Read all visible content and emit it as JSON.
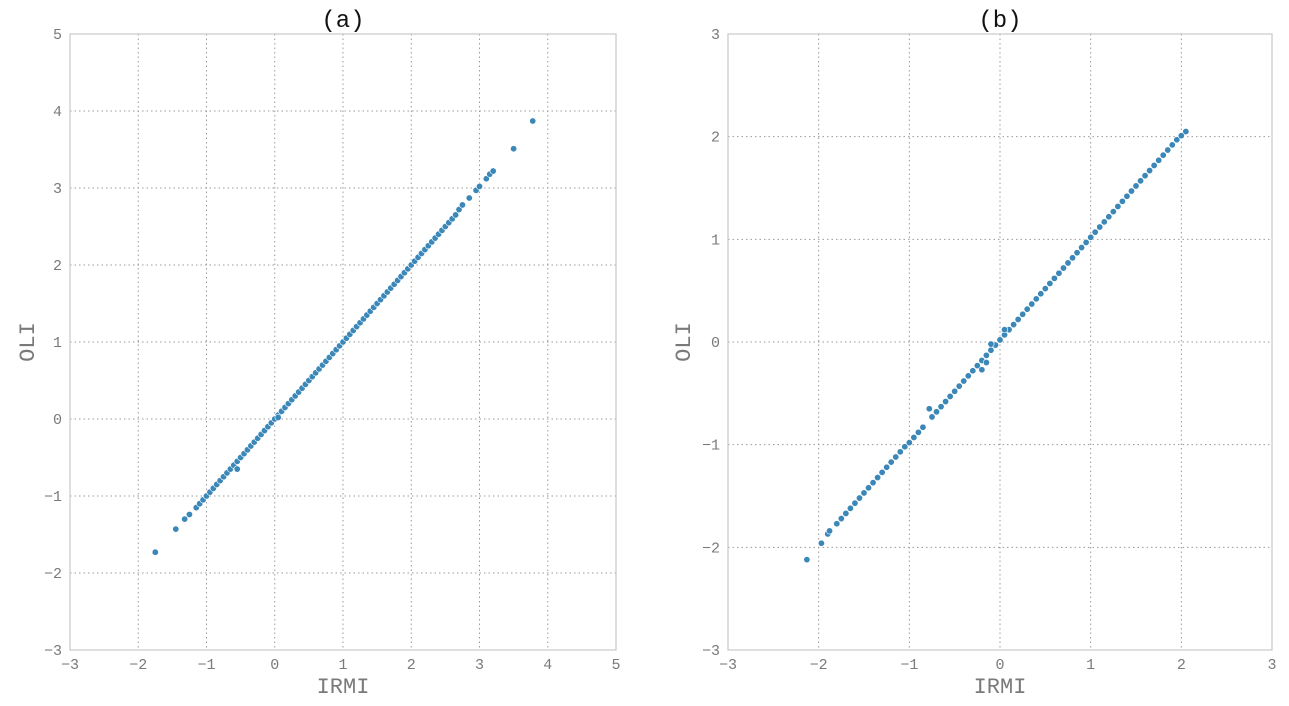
{
  "chart_data": [
    {
      "type": "scatter",
      "title": "(a)",
      "xlabel": "IRMI",
      "ylabel": "OLI",
      "xlim": [
        -3,
        5
      ],
      "ylim": [
        -3,
        5
      ],
      "xticks": [
        -3,
        -2,
        -1,
        0,
        1,
        2,
        3,
        4,
        5
      ],
      "yticks": [
        -3,
        -2,
        -1,
        0,
        1,
        2,
        3,
        4,
        5
      ],
      "grid": true,
      "color": "#3a87b8",
      "x": [
        -1.75,
        -1.45,
        -1.32,
        -1.25,
        -1.15,
        -1.1,
        -1.05,
        -1.0,
        -0.95,
        -0.9,
        -0.85,
        -0.8,
        -0.75,
        -0.7,
        -0.65,
        -0.6,
        -0.55,
        -0.5,
        -0.45,
        -0.4,
        -0.35,
        -0.3,
        -0.25,
        -0.2,
        -0.15,
        -0.1,
        -0.05,
        0.0,
        0.05,
        0.1,
        0.15,
        0.2,
        0.25,
        0.3,
        0.35,
        0.4,
        0.45,
        0.5,
        0.55,
        0.6,
        0.65,
        0.7,
        0.75,
        0.8,
        0.85,
        0.9,
        0.95,
        1.0,
        1.05,
        1.1,
        1.15,
        1.2,
        1.25,
        1.3,
        1.35,
        1.4,
        1.45,
        1.5,
        1.55,
        1.6,
        1.65,
        1.7,
        1.75,
        1.8,
        1.85,
        1.9,
        1.95,
        2.0,
        2.05,
        2.1,
        2.15,
        2.2,
        2.25,
        2.3,
        2.35,
        2.4,
        2.45,
        2.5,
        2.55,
        2.6,
        2.65,
        2.7,
        2.75,
        2.85,
        2.95,
        3.0,
        3.1,
        3.15,
        3.2,
        3.5,
        3.78,
        -0.55,
        0.05
      ],
      "y": [
        -1.73,
        -1.43,
        -1.3,
        -1.24,
        -1.15,
        -1.1,
        -1.05,
        -1.0,
        -0.95,
        -0.9,
        -0.85,
        -0.8,
        -0.75,
        -0.7,
        -0.65,
        -0.6,
        -0.55,
        -0.5,
        -0.45,
        -0.4,
        -0.35,
        -0.3,
        -0.25,
        -0.2,
        -0.15,
        -0.1,
        -0.05,
        0.0,
        0.05,
        0.1,
        0.15,
        0.2,
        0.25,
        0.3,
        0.35,
        0.4,
        0.45,
        0.5,
        0.55,
        0.6,
        0.65,
        0.7,
        0.75,
        0.8,
        0.85,
        0.9,
        0.95,
        1.0,
        1.05,
        1.1,
        1.15,
        1.2,
        1.25,
        1.3,
        1.35,
        1.4,
        1.45,
        1.5,
        1.55,
        1.6,
        1.65,
        1.7,
        1.75,
        1.8,
        1.85,
        1.9,
        1.95,
        2.0,
        2.05,
        2.1,
        2.15,
        2.2,
        2.25,
        2.3,
        2.35,
        2.4,
        2.45,
        2.5,
        2.55,
        2.6,
        2.65,
        2.72,
        2.78,
        2.87,
        2.97,
        3.02,
        3.12,
        3.18,
        3.22,
        3.51,
        3.87,
        -0.65,
        0.02
      ]
    },
    {
      "type": "scatter",
      "title": "(b)",
      "xlabel": "IRMI",
      "ylabel": "OLI",
      "xlim": [
        -3,
        3
      ],
      "ylim": [
        -3,
        3
      ],
      "xticks": [
        -3,
        -2,
        -1,
        0,
        1,
        2,
        3
      ],
      "yticks": [
        -3,
        -2,
        -1,
        0,
        1,
        2,
        3
      ],
      "grid": true,
      "color": "#3a87b8",
      "x": [
        -2.13,
        -1.97,
        -1.9,
        -1.88,
        -1.8,
        -1.75,
        -1.7,
        -1.65,
        -1.6,
        -1.55,
        -1.5,
        -1.45,
        -1.4,
        -1.35,
        -1.3,
        -1.25,
        -1.2,
        -1.15,
        -1.1,
        -1.05,
        -1.0,
        -0.95,
        -0.9,
        -0.85,
        -0.78,
        -0.75,
        -0.7,
        -0.65,
        -0.6,
        -0.55,
        -0.5,
        -0.45,
        -0.4,
        -0.35,
        -0.3,
        -0.25,
        -0.2,
        -0.15,
        -0.1,
        -0.05,
        0.0,
        0.05,
        0.1,
        0.15,
        0.2,
        0.25,
        0.3,
        0.35,
        0.4,
        0.45,
        0.5,
        0.55,
        0.6,
        0.65,
        0.7,
        0.75,
        0.8,
        0.85,
        0.9,
        0.95,
        1.0,
        1.05,
        1.1,
        1.15,
        1.2,
        1.25,
        1.3,
        1.35,
        1.4,
        1.45,
        1.5,
        1.55,
        1.6,
        1.65,
        1.7,
        1.75,
        1.8,
        1.85,
        1.9,
        1.95,
        2.0,
        2.05,
        -0.2,
        -0.1,
        0.05,
        -0.15
      ],
      "y": [
        -2.12,
        -1.96,
        -1.87,
        -1.84,
        -1.77,
        -1.72,
        -1.67,
        -1.62,
        -1.57,
        -1.52,
        -1.47,
        -1.42,
        -1.37,
        -1.32,
        -1.27,
        -1.22,
        -1.17,
        -1.12,
        -1.07,
        -1.02,
        -0.98,
        -0.93,
        -0.88,
        -0.83,
        -0.65,
        -0.73,
        -0.68,
        -0.63,
        -0.58,
        -0.53,
        -0.48,
        -0.43,
        -0.38,
        -0.33,
        -0.28,
        -0.23,
        -0.18,
        -0.13,
        -0.08,
        -0.03,
        0.02,
        0.07,
        0.12,
        0.17,
        0.22,
        0.27,
        0.32,
        0.37,
        0.42,
        0.47,
        0.52,
        0.57,
        0.62,
        0.67,
        0.72,
        0.77,
        0.82,
        0.87,
        0.92,
        0.97,
        1.02,
        1.07,
        1.12,
        1.17,
        1.22,
        1.27,
        1.32,
        1.37,
        1.42,
        1.47,
        1.52,
        1.57,
        1.62,
        1.67,
        1.72,
        1.77,
        1.82,
        1.87,
        1.92,
        1.97,
        2.01,
        2.05,
        -0.27,
        -0.02,
        0.12,
        -0.2
      ]
    }
  ]
}
